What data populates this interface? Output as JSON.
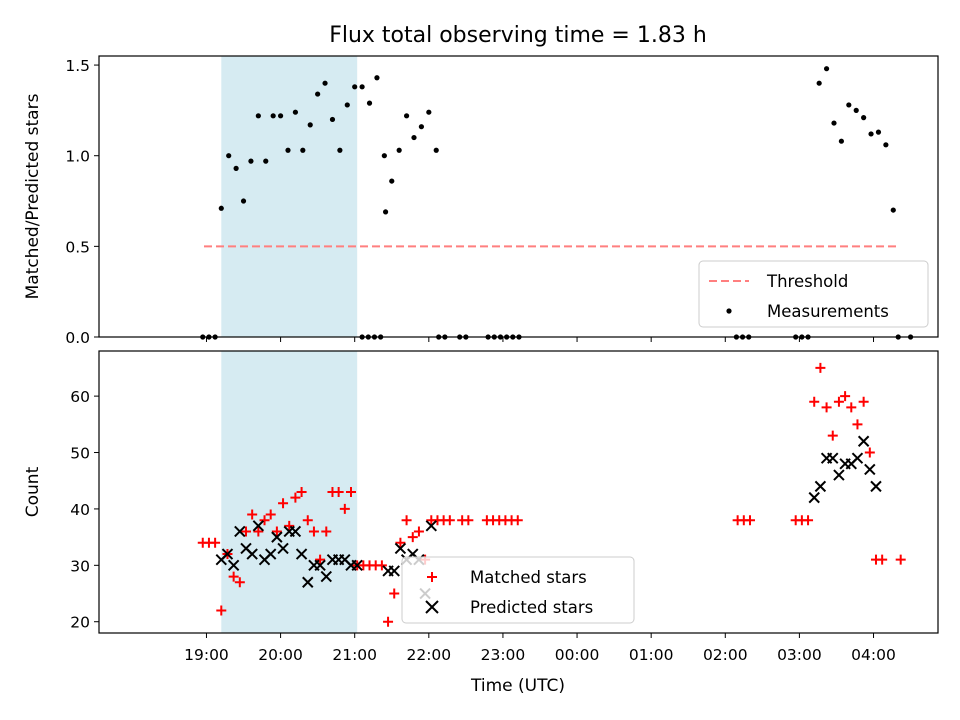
{
  "chart_data": {
    "type": "scatter",
    "title": "Flux total observing time = 1.83 h",
    "xlabel": "Time (UTC)",
    "x_tick_labels": [
      "19:00",
      "20:00",
      "21:00",
      "22:00",
      "23:00",
      "00:00",
      "01:00",
      "02:00",
      "03:00",
      "04:00"
    ],
    "x_range_hours": [
      17.55,
      28.87
    ],
    "shaded_interval": {
      "start": "19:12",
      "end": "21:02",
      "color": "#add8e6"
    },
    "panels": [
      {
        "ylabel": "Matched/Predicted stars",
        "ylim": [
          0,
          1.55
        ],
        "yticks": [
          "0.0",
          "0.5",
          "1.0",
          "1.5"
        ],
        "legend": {
          "position": "lower-right",
          "entries": [
            "Threshold",
            "Measurements"
          ]
        },
        "series": [
          {
            "name": "Threshold",
            "type": "line",
            "style": "dashed",
            "color": "#ff7f7f",
            "x": [
              "18:58",
              "04:20"
            ],
            "y": [
              0.5,
              0.5
            ]
          },
          {
            "name": "Measurements",
            "type": "scatter",
            "color": "#000000",
            "marker": "dot",
            "points": [
              [
                "18:57",
                0
              ],
              [
                "19:02",
                0
              ],
              [
                "19:07",
                0
              ],
              [
                "19:12",
                0.71
              ],
              [
                "19:18",
                1.0
              ],
              [
                "19:24",
                0.93
              ],
              [
                "19:30",
                0.75
              ],
              [
                "19:36",
                0.97
              ],
              [
                "19:42",
                1.22
              ],
              [
                "19:48",
                0.97
              ],
              [
                "19:54",
                1.22
              ],
              [
                "20:00",
                1.22
              ],
              [
                "20:06",
                1.03
              ],
              [
                "20:12",
                1.24
              ],
              [
                "20:18",
                1.03
              ],
              [
                "20:24",
                1.17
              ],
              [
                "20:30",
                1.34
              ],
              [
                "20:36",
                1.4
              ],
              [
                "20:42",
                1.2
              ],
              [
                "20:48",
                1.03
              ],
              [
                "20:54",
                1.28
              ],
              [
                "21:00",
                1.38
              ],
              [
                "21:06",
                1.38
              ],
              [
                "21:12",
                1.29
              ],
              [
                "21:18",
                1.43
              ],
              [
                "21:24",
                1.0
              ],
              [
                "21:06",
                0
              ],
              [
                "21:11",
                0
              ],
              [
                "21:16",
                0
              ],
              [
                "21:21",
                0
              ],
              [
                "21:25",
                0.69
              ],
              [
                "21:30",
                0.86
              ],
              [
                "21:36",
                1.03
              ],
              [
                "21:42",
                1.22
              ],
              [
                "21:48",
                1.1
              ],
              [
                "21:54",
                1.16
              ],
              [
                "22:00",
                1.24
              ],
              [
                "22:06",
                1.03
              ],
              [
                "22:08",
                0
              ],
              [
                "22:13",
                0
              ],
              [
                "22:25",
                0
              ],
              [
                "22:30",
                0
              ],
              [
                "22:48",
                0
              ],
              [
                "22:53",
                0
              ],
              [
                "22:58",
                0
              ],
              [
                "23:03",
                0
              ],
              [
                "23:08",
                0
              ],
              [
                "23:13",
                0
              ],
              [
                "02:09",
                0
              ],
              [
                "02:14",
                0
              ],
              [
                "02:19",
                0
              ],
              [
                "02:57",
                0
              ],
              [
                "03:02",
                0
              ],
              [
                "03:07",
                0
              ],
              [
                "03:16",
                1.4
              ],
              [
                "03:22",
                1.48
              ],
              [
                "03:28",
                1.18
              ],
              [
                "03:34",
                1.08
              ],
              [
                "03:40",
                1.28
              ],
              [
                "03:46",
                1.25
              ],
              [
                "03:52",
                1.21
              ],
              [
                "03:58",
                1.12
              ],
              [
                "04:04",
                1.13
              ],
              [
                "04:10",
                1.06
              ],
              [
                "04:16",
                0.7
              ],
              [
                "04:20",
                0
              ],
              [
                "04:30",
                0
              ]
            ]
          }
        ]
      },
      {
        "ylabel": "Count",
        "ylim": [
          18,
          68
        ],
        "yticks": [
          "20",
          "30",
          "40",
          "50",
          "60"
        ],
        "legend": {
          "position": "bottom-center",
          "entries": [
            "Matched stars",
            "Predicted stars"
          ]
        },
        "series": [
          {
            "name": "Matched stars",
            "type": "scatter",
            "color": "#ff0000",
            "marker": "plus",
            "points": [
              [
                "18:57",
                34
              ],
              [
                "19:02",
                34
              ],
              [
                "19:07",
                34
              ],
              [
                "19:12",
                22
              ],
              [
                "19:17",
                32
              ],
              [
                "19:22",
                28
              ],
              [
                "19:27",
                27
              ],
              [
                "19:32",
                36
              ],
              [
                "19:37",
                39
              ],
              [
                "19:42",
                36
              ],
              [
                "19:47",
                38
              ],
              [
                "19:52",
                39
              ],
              [
                "19:57",
                36
              ],
              [
                "20:02",
                41
              ],
              [
                "20:07",
                37
              ],
              [
                "20:12",
                42
              ],
              [
                "20:17",
                43
              ],
              [
                "20:22",
                38
              ],
              [
                "20:27",
                36
              ],
              [
                "20:32",
                31
              ],
              [
                "20:37",
                36
              ],
              [
                "20:42",
                43
              ],
              [
                "20:47",
                43
              ],
              [
                "20:52",
                40
              ],
              [
                "20:57",
                43
              ],
              [
                "21:02",
                30
              ],
              [
                "21:07",
                30
              ],
              [
                "21:12",
                30
              ],
              [
                "21:17",
                30
              ],
              [
                "21:22",
                30
              ],
              [
                "21:27",
                20
              ],
              [
                "21:32",
                25
              ],
              [
                "21:37",
                34
              ],
              [
                "21:42",
                38
              ],
              [
                "21:47",
                35
              ],
              [
                "21:52",
                36
              ],
              [
                "21:57",
                31
              ],
              [
                "22:02",
                38
              ],
              [
                "22:07",
                38
              ],
              [
                "22:12",
                38
              ],
              [
                "22:17",
                38
              ],
              [
                "22:27",
                38
              ],
              [
                "22:32",
                38
              ],
              [
                "22:47",
                38
              ],
              [
                "22:52",
                38
              ],
              [
                "22:57",
                38
              ],
              [
                "23:02",
                38
              ],
              [
                "23:07",
                38
              ],
              [
                "23:12",
                38
              ],
              [
                "02:10",
                38
              ],
              [
                "02:15",
                38
              ],
              [
                "02:20",
                38
              ],
              [
                "02:57",
                38
              ],
              [
                "03:02",
                38
              ],
              [
                "03:07",
                38
              ],
              [
                "03:12",
                59
              ],
              [
                "03:17",
                65
              ],
              [
                "03:22",
                58
              ],
              [
                "03:27",
                53
              ],
              [
                "03:32",
                59
              ],
              [
                "03:37",
                60
              ],
              [
                "03:42",
                58
              ],
              [
                "03:47",
                55
              ],
              [
                "03:52",
                59
              ],
              [
                "03:57",
                50
              ],
              [
                "04:02",
                31
              ],
              [
                "04:07",
                31
              ],
              [
                "04:22",
                31
              ]
            ]
          },
          {
            "name": "Predicted stars",
            "type": "scatter",
            "color": "#000000",
            "marker": "x",
            "points": [
              [
                "19:12",
                31
              ],
              [
                "19:17",
                32
              ],
              [
                "19:22",
                30
              ],
              [
                "19:27",
                36
              ],
              [
                "19:32",
                33
              ],
              [
                "19:37",
                32
              ],
              [
                "19:42",
                37
              ],
              [
                "19:47",
                31
              ],
              [
                "19:52",
                32
              ],
              [
                "19:57",
                35
              ],
              [
                "20:02",
                33
              ],
              [
                "20:07",
                36
              ],
              [
                "20:12",
                36
              ],
              [
                "20:17",
                32
              ],
              [
                "20:22",
                27
              ],
              [
                "20:27",
                30
              ],
              [
                "20:32",
                30
              ],
              [
                "20:37",
                28
              ],
              [
                "20:42",
                31
              ],
              [
                "20:47",
                31
              ],
              [
                "20:52",
                31
              ],
              [
                "20:57",
                30
              ],
              [
                "21:02",
                30
              ],
              [
                "21:27",
                29
              ],
              [
                "21:32",
                29
              ],
              [
                "21:37",
                33
              ],
              [
                "21:42",
                31
              ],
              [
                "21:47",
                32
              ],
              [
                "21:52",
                31
              ],
              [
                "21:57",
                25
              ],
              [
                "22:02",
                37
              ],
              [
                "03:12",
                42
              ],
              [
                "03:17",
                44
              ],
              [
                "03:22",
                49
              ],
              [
                "03:27",
                49
              ],
              [
                "03:32",
                46
              ],
              [
                "03:37",
                48
              ],
              [
                "03:42",
                48
              ],
              [
                "03:47",
                49
              ],
              [
                "03:52",
                52
              ],
              [
                "03:57",
                47
              ],
              [
                "04:02",
                44
              ]
            ]
          }
        ]
      }
    ]
  }
}
